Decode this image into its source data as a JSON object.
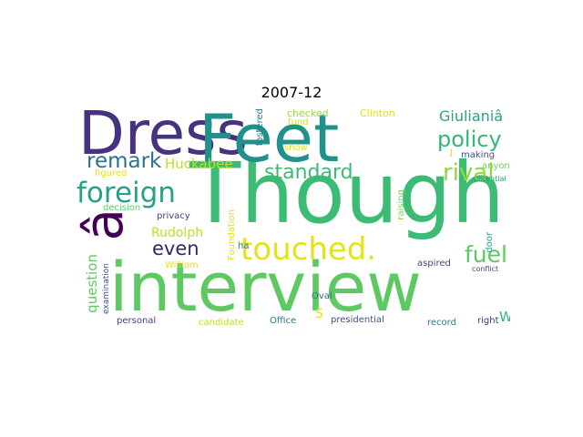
{
  "title": "2007-12",
  "words": {
    "though": "Though",
    "interview": "interview",
    "dress": "Dress",
    "feet": "Feet",
    "a_hat": "â",
    "touched": "touched.",
    "foreign": "foreign",
    "policy": "policy",
    "remark": "remark",
    "standard": "standard",
    "rival": "rival",
    "fuel": "fuel",
    "even": "even",
    "giuliani": "Giulianiâ",
    "huckabee": "Huckabee",
    "rudolph": "Rudolph",
    "question": "question",
    "checked": "checked",
    "clinton": "Clinton",
    "fund": "fund",
    "show": "show",
    "fostered": "fostered",
    "making": "making",
    "anyone": "anyone",
    "potential": "potential",
    "figured": "figured",
    "decision": "decision",
    "privacy": "privacy",
    "raising": "raising",
    "foundation": "Foundation",
    "ha": "ha",
    "william": "William",
    "door": "door",
    "aspired": "aspired",
    "conflict": "conflict",
    "oval": "Oval",
    "s": "S",
    "examination": "examination",
    "personal": "personal",
    "candidate": "candidate",
    "office": "Office",
    "presidential": "presidential",
    "record": "record",
    "right": "right",
    "w": "W",
    "j": "J"
  }
}
